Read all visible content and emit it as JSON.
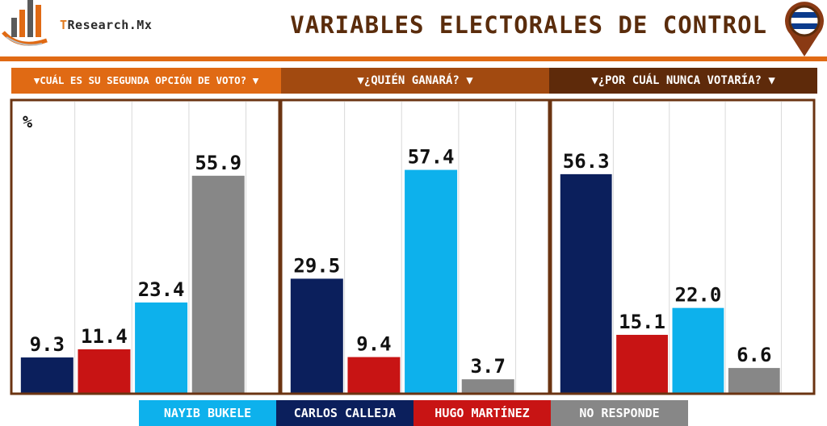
{
  "header": {
    "logo_text_prefix": "T",
    "logo_text_rest": "Research.Mx",
    "title": "VARIABLES ELECTORALES DE CONTROL"
  },
  "colors": {
    "accent": "#e06a14",
    "title": "#5a2c0c",
    "section_1": "#e06a14",
    "section_2": "#a24a10",
    "section_3": "#5e2a0a",
    "panel_border": "#6b3412"
  },
  "chart_data": {
    "type": "bar",
    "unit_label": "%",
    "ylim": [
      0,
      70
    ],
    "grid": true,
    "sections": [
      {
        "title": "▼CUÁL ES SU SEGUNDA OPCIÓN DE VOTO? ▼",
        "series": [
          {
            "name": "CARLOS CALLEJA",
            "value": 9.3,
            "label": "9.3",
            "color": "#0b1f5c"
          },
          {
            "name": "HUGO MARTÍNEZ",
            "value": 11.4,
            "label": "11.4",
            "color": "#c81414"
          },
          {
            "name": "NAYIB BUKELE",
            "value": 23.4,
            "label": "23.4",
            "color": "#0db1ec"
          },
          {
            "name": "NO RESPONDE",
            "value": 55.9,
            "label": "55.9",
            "color": "#878787"
          }
        ]
      },
      {
        "title": "▼¿QUIÉN GANARÁ? ▼",
        "series": [
          {
            "name": "CARLOS CALLEJA",
            "value": 29.5,
            "label": "29.5",
            "color": "#0b1f5c"
          },
          {
            "name": "HUGO MARTÍNEZ",
            "value": 9.4,
            "label": "9.4",
            "color": "#c81414"
          },
          {
            "name": "NAYIB BUKELE",
            "value": 57.4,
            "label": "57.4",
            "color": "#0db1ec"
          },
          {
            "name": "NO RESPONDE",
            "value": 3.7,
            "label": "3.7",
            "color": "#878787"
          }
        ]
      },
      {
        "title": "▼¿POR CUÁL NUNCA VOTARÍA? ▼",
        "series": [
          {
            "name": "CARLOS CALLEJA",
            "value": 56.3,
            "label": "56.3",
            "color": "#0b1f5c"
          },
          {
            "name": "HUGO MARTÍNEZ",
            "value": 15.1,
            "label": "15.1",
            "color": "#c81414"
          },
          {
            "name": "NAYIB BUKELE",
            "value": 22.0,
            "label": "22.0",
            "color": "#0db1ec"
          },
          {
            "name": "NO RESPONDE",
            "value": 6.6,
            "label": "6.6",
            "color": "#878787"
          }
        ]
      }
    ],
    "legend": [
      {
        "name": "NAYIB BUKELE",
        "color": "#0db1ec"
      },
      {
        "name": "CARLOS CALLEJA",
        "color": "#0b1f5c"
      },
      {
        "name": "HUGO MARTÍNEZ",
        "color": "#c81414"
      },
      {
        "name": "NO RESPONDE",
        "color": "#878787"
      }
    ]
  }
}
